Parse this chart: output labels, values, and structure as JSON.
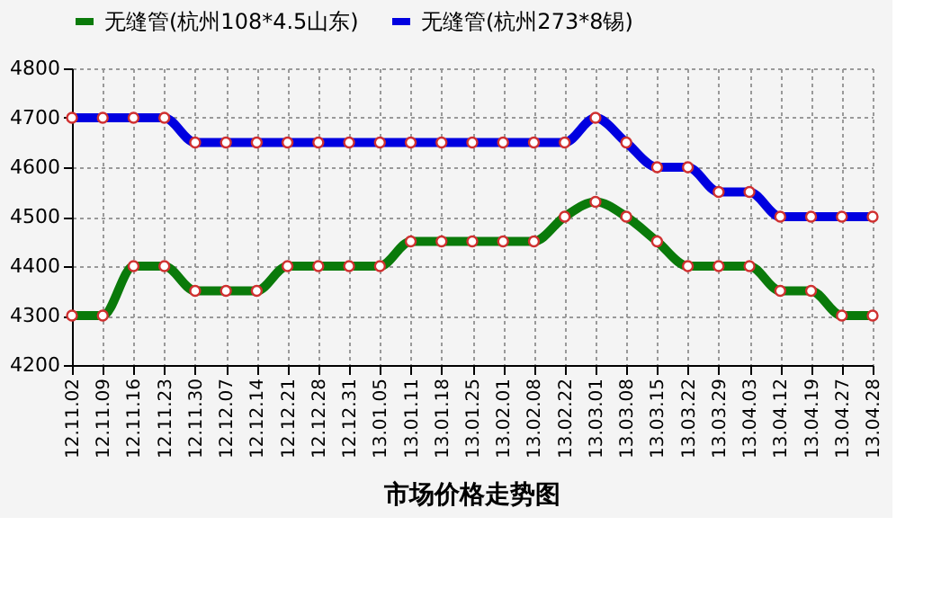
{
  "chart_data": {
    "type": "line",
    "title": "市场价格走势图",
    "categories": [
      "12.11.02",
      "12.11.09",
      "12.11.16",
      "12.11.23",
      "12.11.30",
      "12.12.07",
      "12.12.14",
      "12.12.21",
      "12.12.28",
      "12.12.31",
      "13.01.05",
      "13.01.11",
      "13.01.18",
      "13.01.25",
      "13.02.01",
      "13.02.08",
      "13.02.22",
      "13.03.01",
      "13.03.08",
      "13.03.15",
      "13.03.22",
      "13.03.29",
      "13.04.03",
      "13.04.12",
      "13.04.19",
      "13.04.27",
      "13.04.28"
    ],
    "series": [
      {
        "name": "无缝管(杭州108*4.5山东)",
        "color": "#0a7a0a",
        "values": [
          4300,
          4300,
          4400,
          4400,
          4350,
          4350,
          4350,
          4400,
          4400,
          4400,
          4400,
          4450,
          4450,
          4450,
          4450,
          4450,
          4500,
          4530,
          4500,
          4450,
          4400,
          4400,
          4400,
          4350,
          4350,
          4300,
          4300
        ]
      },
      {
        "name": "无缝管(杭州273*8锡)",
        "color": "#0000e0",
        "values": [
          4700,
          4700,
          4700,
          4700,
          4650,
          4650,
          4650,
          4650,
          4650,
          4650,
          4650,
          4650,
          4650,
          4650,
          4650,
          4650,
          4650,
          4700,
          4650,
          4600,
          4600,
          4550,
          4550,
          4500,
          4500,
          4500,
          4500
        ]
      }
    ],
    "ylim": [
      4200,
      4800
    ],
    "yticks": [
      4200,
      4300,
      4400,
      4500,
      4600,
      4700,
      4800
    ],
    "grid": true,
    "legend": "top",
    "marker": "circle",
    "line_style": "solid"
  }
}
